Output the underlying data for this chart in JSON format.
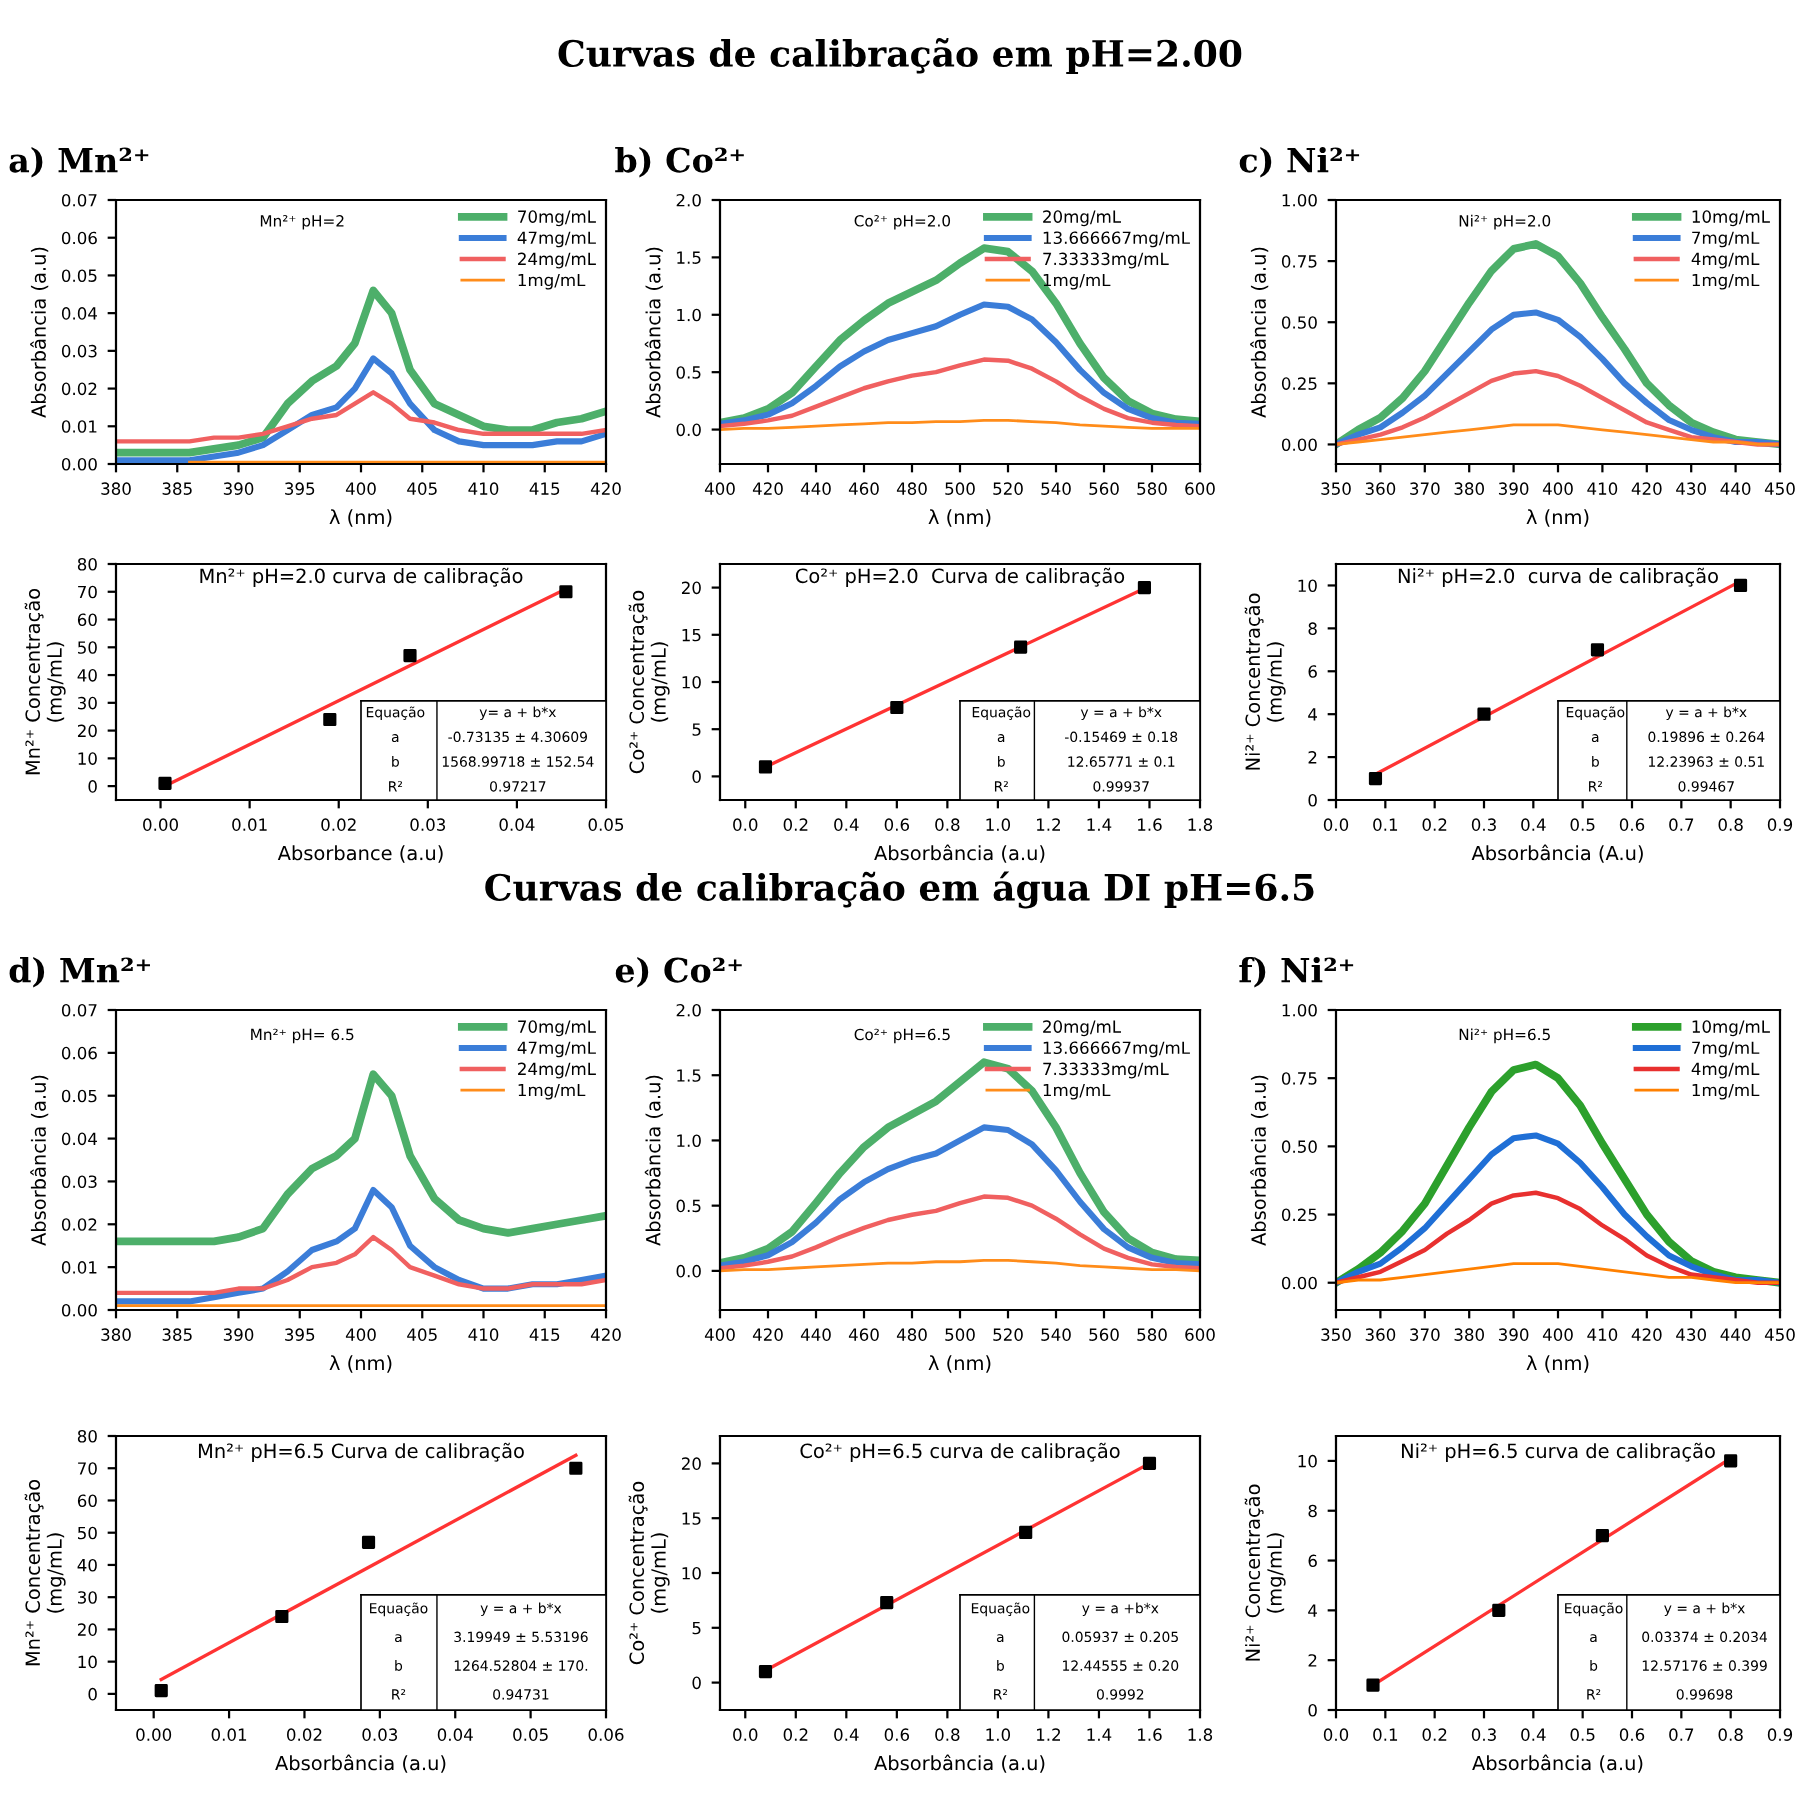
{
  "chart_data": [
    {
      "type": "other",
      "title": "Curvas de calibração em pH=2.00"
    },
    {
      "type": "line",
      "title": "a) Mn²⁺",
      "xlabel": "λ (nm)",
      "ylabel": "Absorbância (a.u)",
      "annotations": [
        "Mn²⁺ pH=2"
      ],
      "legend": "top right",
      "line_style": "solid",
      "marker": "none",
      "x": [
        380,
        383,
        386,
        388,
        390,
        392,
        394,
        396,
        398,
        399.5,
        401,
        402.5,
        404,
        406,
        408,
        410,
        412,
        414,
        416,
        418,
        420
      ],
      "xlim": [
        380,
        420
      ],
      "xticks": [
        380,
        385,
        390,
        395,
        400,
        405,
        410,
        415,
        420
      ],
      "ylim": [
        0,
        0.07
      ],
      "yticks": [
        {
          "value": 0,
          "label": "0.00"
        },
        {
          "value": 0.01,
          "label": "0.01"
        },
        {
          "value": 0.02,
          "label": "0.02"
        },
        {
          "value": 0.03,
          "label": "0.03"
        },
        {
          "value": 0.04,
          "label": "0.04"
        },
        {
          "value": 0.05,
          "label": "0.05"
        },
        {
          "value": 0.06,
          "label": "0.06"
        },
        {
          "value": 0.07,
          "label": "0.07"
        }
      ],
      "series": [
        {
          "name": "70mg/mL",
          "color": "#4daf6a",
          "values": [
            0.003,
            0.003,
            0.003,
            0.004,
            0.005,
            0.007,
            0.016,
            0.022,
            0.026,
            0.032,
            0.046,
            0.04,
            0.025,
            0.016,
            0.013,
            0.01,
            0.009,
            0.009,
            0.011,
            0.012,
            0.014
          ]
        },
        {
          "name": "47mg/mL",
          "color": "#3b7dd8",
          "values": [
            0.001,
            0.001,
            0.001,
            0.002,
            0.003,
            0.005,
            0.009,
            0.013,
            0.015,
            0.02,
            0.028,
            0.024,
            0.016,
            0.009,
            0.006,
            0.005,
            0.005,
            0.005,
            0.006,
            0.006,
            0.008
          ]
        },
        {
          "name": "24mg/mL",
          "color": "#f06060",
          "values": [
            0.006,
            0.006,
            0.006,
            0.007,
            0.007,
            0.008,
            0.01,
            0.012,
            0.013,
            0.016,
            0.019,
            0.016,
            0.012,
            0.011,
            0.009,
            0.008,
            0.008,
            0.008,
            0.008,
            0.008,
            0.009
          ]
        },
        {
          "name": "1mg/mL",
          "color": "#ff8c1a",
          "values": [
            null,
            null,
            0.0005,
            0.0005,
            0.0005,
            0.0005,
            0.0005,
            0.0005,
            0.0005,
            0.0005,
            0.0005,
            0.0005,
            0.0005,
            0.0005,
            0.0005,
            0.0005,
            0.0005,
            0.0005,
            0.0005,
            0.0005,
            0.0005
          ]
        }
      ]
    },
    {
      "type": "line",
      "title": "b) Co²⁺",
      "xlabel": "λ (nm)",
      "ylabel": "Absorbância (a.u)",
      "annotations": [
        "Co²⁺ pH=2.0"
      ],
      "legend": "top right",
      "line_style": "solid",
      "marker": "none",
      "x": [
        400,
        410,
        420,
        430,
        440,
        450,
        460,
        470,
        480,
        490,
        500,
        510,
        520,
        530,
        540,
        550,
        560,
        570,
        580,
        590,
        600
      ],
      "xlim": [
        400,
        600
      ],
      "xticks": [
        400,
        420,
        440,
        460,
        480,
        500,
        520,
        540,
        560,
        580,
        600
      ],
      "ylim": [
        -0.3,
        2.0
      ],
      "yticks": [
        {
          "value": 0,
          "label": "0.0"
        },
        0.5,
        {
          "value": 1,
          "label": "1.0"
        },
        1.5,
        {
          "value": 2,
          "label": "2.0"
        }
      ],
      "series": [
        {
          "name": "20mg/mL",
          "color": "#4daf6a",
          "values": [
            0.06,
            0.1,
            0.18,
            0.32,
            0.55,
            0.78,
            0.95,
            1.1,
            1.2,
            1.3,
            1.45,
            1.58,
            1.55,
            1.38,
            1.1,
            0.75,
            0.45,
            0.25,
            0.14,
            0.09,
            0.07
          ]
        },
        {
          "name": "13.666667mg/mL",
          "color": "#3b7dd8",
          "values": [
            0.05,
            0.08,
            0.13,
            0.23,
            0.38,
            0.55,
            0.68,
            0.78,
            0.84,
            0.9,
            1.0,
            1.09,
            1.07,
            0.96,
            0.76,
            0.52,
            0.32,
            0.18,
            0.1,
            0.06,
            0.05
          ]
        },
        {
          "name": "7.33333mg/mL",
          "color": "#f06060",
          "values": [
            0.03,
            0.05,
            0.08,
            0.12,
            0.2,
            0.28,
            0.36,
            0.42,
            0.47,
            0.5,
            0.56,
            0.61,
            0.6,
            0.53,
            0.42,
            0.29,
            0.18,
            0.1,
            0.06,
            0.04,
            0.03
          ]
        },
        {
          "name": "1mg/mL",
          "color": "#ff8c1a",
          "values": [
            0.0,
            0.01,
            0.01,
            0.02,
            0.03,
            0.04,
            0.05,
            0.06,
            0.06,
            0.07,
            0.07,
            0.08,
            0.08,
            0.07,
            0.06,
            0.04,
            0.03,
            0.02,
            0.01,
            0.01,
            0.01
          ]
        }
      ]
    },
    {
      "type": "line",
      "title": "c) Ni²⁺",
      "xlabel": "λ (nm)",
      "ylabel": "Absorbância (a.u)",
      "annotations": [
        "Ni²⁺ pH=2.0"
      ],
      "legend": "top right",
      "line_style": "solid",
      "marker": "none",
      "x": [
        350,
        355,
        360,
        365,
        370,
        375,
        380,
        385,
        390,
        395,
        400,
        405,
        410,
        415,
        420,
        425,
        430,
        435,
        440,
        445,
        450
      ],
      "xlim": [
        350,
        450
      ],
      "xticks": [
        350,
        360,
        370,
        380,
        390,
        400,
        410,
        420,
        430,
        440,
        450
      ],
      "ylim": [
        -0.08,
        1.0
      ],
      "yticks": [
        {
          "value": 0,
          "label": "0.00"
        },
        {
          "value": 0.25,
          "label": "0.25"
        },
        {
          "value": 0.5,
          "label": "0.50"
        },
        {
          "value": 0.75,
          "label": "0.75"
        },
        {
          "value": 1.0,
          "label": "1.00"
        }
      ],
      "series": [
        {
          "name": "10mg/mL",
          "color": "#4daf6a",
          "values": [
            0.0,
            0.06,
            0.11,
            0.19,
            0.3,
            0.44,
            0.58,
            0.71,
            0.8,
            0.82,
            0.77,
            0.66,
            0.52,
            0.39,
            0.25,
            0.16,
            0.09,
            0.05,
            0.02,
            0.01,
            0.0
          ]
        },
        {
          "name": "7mg/mL",
          "color": "#3b7dd8",
          "values": [
            0.0,
            0.04,
            0.07,
            0.13,
            0.2,
            0.29,
            0.38,
            0.47,
            0.53,
            0.54,
            0.51,
            0.44,
            0.35,
            0.25,
            0.17,
            0.1,
            0.06,
            0.03,
            0.01,
            0.01,
            0.0
          ]
        },
        {
          "name": "4mg/mL",
          "color": "#f06060",
          "values": [
            0.0,
            0.02,
            0.04,
            0.07,
            0.11,
            0.16,
            0.21,
            0.26,
            0.29,
            0.3,
            0.28,
            0.24,
            0.19,
            0.14,
            0.09,
            0.06,
            0.03,
            0.02,
            0.01,
            0.0,
            0.0
          ]
        },
        {
          "name": "1mg/mL",
          "color": "#ff8c1a",
          "values": [
            0.0,
            0.01,
            0.02,
            0.03,
            0.04,
            0.05,
            0.06,
            0.07,
            0.08,
            0.08,
            0.08,
            0.07,
            0.06,
            0.05,
            0.04,
            0.03,
            0.02,
            0.01,
            0.01,
            0.0,
            0.0
          ]
        }
      ]
    },
    {
      "type": "scatter",
      "title": "Mn²⁺ pH=2.0 curva de calibração",
      "xlabel": "Absorbance (a.u)",
      "ylabel": "Mn²⁺ Concentração\n(mg/mL)",
      "annotations": [
        "Equação",
        "y= a + b*x",
        "a",
        "-0.73135 ± 4.30609",
        "b",
        "1568.99718 ± 152.54",
        "R²",
        "0.97217"
      ],
      "xlim": [
        -0.005,
        0.05
      ],
      "xticks": [
        {
          "value": 0,
          "label": "0.00"
        },
        {
          "value": 0.01,
          "label": "0.01"
        },
        {
          "value": 0.02,
          "label": "0.02"
        },
        {
          "value": 0.03,
          "label": "0.03"
        },
        {
          "value": 0.04,
          "label": "0.04"
        },
        {
          "value": 0.05,
          "label": "0.05"
        }
      ],
      "ylim": [
        -5,
        80
      ],
      "yticks": [
        0,
        10,
        20,
        30,
        40,
        50,
        60,
        70,
        80
      ],
      "series": [
        {
          "type": "line",
          "color": "#ff3333",
          "marker": "none",
          "x": [
            0.0005,
            0.0455
          ],
          "values": [
            0,
            71
          ]
        },
        {
          "type": "scatter",
          "color": "#000000",
          "marker": "square",
          "x": [
            0.0005,
            0.019,
            0.028,
            0.0455
          ],
          "values": [
            1,
            24,
            47,
            70
          ]
        }
      ]
    },
    {
      "type": "scatter",
      "title": "Co²⁺ pH=2.0  Curva de calibração",
      "xlabel": "Absorbância (a.u)",
      "ylabel": "Co²⁺ Concentração\n(mg/mL)",
      "annotations": [
        "Equação",
        "y = a + b*x",
        "a",
        "-0.15469 ± 0.18",
        "b",
        "12.65771 ± 0.1",
        "R²",
        "0.99937"
      ],
      "xlim": [
        -0.1,
        1.8
      ],
      "xticks": [
        {
          "value": 0,
          "label": "0.0"
        },
        0.2,
        0.4,
        0.6,
        0.8,
        {
          "value": 1,
          "label": "1.0"
        },
        1.2,
        1.4,
        1.6,
        1.8
      ],
      "ylim": [
        -2.5,
        22.5
      ],
      "yticks": [
        0,
        5,
        10,
        15,
        20
      ],
      "series": [
        {
          "type": "line",
          "color": "#ff3333",
          "marker": "none",
          "x": [
            0.08,
            1.58
          ],
          "values": [
            1.0,
            19.9
          ]
        },
        {
          "type": "scatter",
          "color": "#000000",
          "marker": "square",
          "x": [
            0.08,
            0.6,
            1.09,
            1.58
          ],
          "values": [
            1,
            7.3,
            13.7,
            20
          ]
        }
      ]
    },
    {
      "type": "scatter",
      "title": "Ni²⁺ pH=2.0  curva de calibração",
      "xlabel": "Absorbância (A.u)",
      "ylabel": "Ni²⁺ Concentração\n(mg/mL)",
      "annotations": [
        "Equação",
        "y = a + b*x",
        "a",
        "0.19896 ± 0.264",
        "b",
        "12.23963 ± 0.51",
        "R²",
        "0.99467"
      ],
      "xlim": [
        0,
        0.9
      ],
      "xticks": [
        {
          "value": 0,
          "label": "0.0"
        },
        0.1,
        0.2,
        0.3,
        0.4,
        0.5,
        0.6,
        0.7,
        0.8,
        0.9
      ],
      "ylim": [
        0,
        11
      ],
      "yticks": [
        0,
        2,
        4,
        6,
        8,
        10
      ],
      "series": [
        {
          "type": "line",
          "color": "#ff3333",
          "marker": "none",
          "x": [
            0.08,
            0.82
          ],
          "values": [
            1.2,
            10.2
          ]
        },
        {
          "type": "scatter",
          "color": "#000000",
          "marker": "square",
          "x": [
            0.08,
            0.3,
            0.53,
            0.82
          ],
          "values": [
            1,
            4,
            7,
            10
          ]
        }
      ]
    },
    {
      "type": "other",
      "title": "Curvas de calibração em água DI pH=6.5"
    },
    {
      "type": "line",
      "title": "d) Mn²⁺",
      "xlabel": "λ (nm)",
      "ylabel": "Absorbância (a.u)",
      "annotations": [
        "Mn²⁺ pH= 6.5"
      ],
      "legend": "top right",
      "line_style": "solid",
      "marker": "none",
      "x": [
        380,
        383,
        386,
        388,
        390,
        392,
        394,
        396,
        398,
        399.5,
        401,
        402.5,
        404,
        406,
        408,
        410,
        412,
        414,
        416,
        418,
        420
      ],
      "xlim": [
        380,
        420
      ],
      "xticks": [
        380,
        385,
        390,
        395,
        400,
        405,
        410,
        415,
        420
      ],
      "ylim": [
        0,
        0.07
      ],
      "yticks": [
        {
          "value": 0,
          "label": "0.00"
        },
        {
          "value": 0.01,
          "label": "0.01"
        },
        {
          "value": 0.02,
          "label": "0.02"
        },
        {
          "value": 0.03,
          "label": "0.03"
        },
        {
          "value": 0.04,
          "label": "0.04"
        },
        {
          "value": 0.05,
          "label": "0.05"
        },
        {
          "value": 0.06,
          "label": "0.06"
        },
        {
          "value": 0.07,
          "label": "0.07"
        }
      ],
      "series": [
        {
          "name": "70mg/mL",
          "color": "#4daf6a",
          "values": [
            0.016,
            0.016,
            0.016,
            0.016,
            0.017,
            0.019,
            0.027,
            0.033,
            0.036,
            0.04,
            0.055,
            0.05,
            0.036,
            0.026,
            0.021,
            0.019,
            0.018,
            0.019,
            0.02,
            0.021,
            0.022
          ]
        },
        {
          "name": "47mg/mL",
          "color": "#3b7dd8",
          "values": [
            0.002,
            0.002,
            0.002,
            0.003,
            0.004,
            0.005,
            0.009,
            0.014,
            0.016,
            0.019,
            0.028,
            0.024,
            0.015,
            0.01,
            0.007,
            0.005,
            0.005,
            0.006,
            0.006,
            0.007,
            0.008
          ]
        },
        {
          "name": "24mg/mL",
          "color": "#f06060",
          "values": [
            0.004,
            0.004,
            0.004,
            0.004,
            0.005,
            0.005,
            0.007,
            0.01,
            0.011,
            0.013,
            0.017,
            0.014,
            0.01,
            0.008,
            0.006,
            0.005,
            0.005,
            0.006,
            0.006,
            0.006,
            0.007
          ]
        },
        {
          "name": "1mg/mL",
          "color": "#ff8c1a",
          "values": [
            0.001,
            0.001,
            0.001,
            0.001,
            0.001,
            0.001,
            0.001,
            0.001,
            0.001,
            0.001,
            0.001,
            0.001,
            0.001,
            0.001,
            0.001,
            0.001,
            0.001,
            0.001,
            0.001,
            0.001,
            0.001
          ]
        }
      ]
    },
    {
      "type": "line",
      "title": "e) Co²⁺",
      "xlabel": "λ (nm)",
      "ylabel": "Absorbância (a.u)",
      "annotations": [
        "Co²⁺ pH=6.5"
      ],
      "legend": "top right",
      "line_style": "solid",
      "marker": "none",
      "x": [
        400,
        410,
        420,
        430,
        440,
        450,
        460,
        470,
        480,
        490,
        500,
        510,
        520,
        530,
        540,
        550,
        560,
        570,
        580,
        590,
        600
      ],
      "xlim": [
        400,
        600
      ],
      "xticks": [
        400,
        420,
        440,
        460,
        480,
        500,
        520,
        540,
        560,
        580,
        600
      ],
      "ylim": [
        -0.3,
        2.0
      ],
      "yticks": [
        {
          "value": 0,
          "label": "0.0"
        },
        0.5,
        {
          "value": 1,
          "label": "1.0"
        },
        1.5,
        {
          "value": 2,
          "label": "2.0"
        }
      ],
      "series": [
        {
          "name": "20mg/mL",
          "color": "#4daf6a",
          "values": [
            0.06,
            0.1,
            0.17,
            0.3,
            0.52,
            0.75,
            0.95,
            1.1,
            1.2,
            1.3,
            1.45,
            1.6,
            1.55,
            1.38,
            1.1,
            0.75,
            0.45,
            0.25,
            0.14,
            0.09,
            0.08
          ]
        },
        {
          "name": "13.666667mg/mL",
          "color": "#3b7dd8",
          "values": [
            0.04,
            0.07,
            0.12,
            0.22,
            0.37,
            0.55,
            0.68,
            0.78,
            0.85,
            0.9,
            1.0,
            1.1,
            1.08,
            0.97,
            0.77,
            0.53,
            0.32,
            0.18,
            0.1,
            0.06,
            0.05
          ]
        },
        {
          "name": "7.33333mg/mL",
          "color": "#f06060",
          "values": [
            0.02,
            0.04,
            0.07,
            0.11,
            0.18,
            0.26,
            0.33,
            0.39,
            0.43,
            0.46,
            0.52,
            0.57,
            0.56,
            0.5,
            0.4,
            0.28,
            0.17,
            0.1,
            0.05,
            0.03,
            0.02
          ]
        },
        {
          "name": "1mg/mL",
          "color": "#ff8c1a",
          "values": [
            0.0,
            0.01,
            0.01,
            0.02,
            0.03,
            0.04,
            0.05,
            0.06,
            0.06,
            0.07,
            0.07,
            0.08,
            0.08,
            0.07,
            0.06,
            0.04,
            0.03,
            0.02,
            0.01,
            0.01,
            0.0
          ]
        }
      ]
    },
    {
      "type": "line",
      "title": "f) Ni²⁺",
      "xlabel": "λ (nm)",
      "ylabel": "Absorbância (a.u)",
      "annotations": [
        "Ni²⁺ pH=6.5"
      ],
      "legend": "top right",
      "line_style": "solid",
      "marker": "none",
      "x": [
        350,
        355,
        360,
        365,
        370,
        375,
        380,
        385,
        390,
        395,
        400,
        405,
        410,
        415,
        420,
        425,
        430,
        435,
        440,
        445,
        450
      ],
      "xlim": [
        350,
        450
      ],
      "xticks": [
        350,
        360,
        370,
        380,
        390,
        400,
        410,
        420,
        430,
        440,
        450
      ],
      "ylim": [
        -0.1,
        1.0
      ],
      "yticks": [
        {
          "value": 0,
          "label": "0.00"
        },
        {
          "value": 0.25,
          "label": "0.25"
        },
        {
          "value": 0.5,
          "label": "0.50"
        },
        {
          "value": 0.75,
          "label": "0.75"
        },
        {
          "value": 1.0,
          "label": "1.00"
        }
      ],
      "series": [
        {
          "name": "10mg/mL",
          "color": "#2ca02c",
          "values": [
            0.0,
            0.05,
            0.11,
            0.19,
            0.29,
            0.43,
            0.57,
            0.7,
            0.78,
            0.8,
            0.75,
            0.65,
            0.51,
            0.38,
            0.25,
            0.15,
            0.08,
            0.04,
            0.02,
            0.01,
            0.0
          ]
        },
        {
          "name": "7mg/mL",
          "color": "#1f6fd6",
          "values": [
            0.0,
            0.04,
            0.07,
            0.13,
            0.2,
            0.29,
            0.38,
            0.47,
            0.53,
            0.54,
            0.51,
            0.44,
            0.35,
            0.25,
            0.17,
            0.1,
            0.06,
            0.03,
            0.01,
            0.01,
            0.0
          ]
        },
        {
          "name": "4mg/mL",
          "color": "#e8302f",
          "values": [
            0.0,
            0.02,
            0.04,
            0.08,
            0.12,
            0.18,
            0.23,
            0.29,
            0.32,
            0.33,
            0.31,
            0.27,
            0.21,
            0.16,
            0.1,
            0.06,
            0.03,
            0.02,
            0.01,
            0.0,
            0.0
          ]
        },
        {
          "name": "1mg/mL",
          "color": "#ff8000",
          "values": [
            0.0,
            0.01,
            0.01,
            0.02,
            0.03,
            0.04,
            0.05,
            0.06,
            0.07,
            0.07,
            0.07,
            0.06,
            0.05,
            0.04,
            0.03,
            0.02,
            0.02,
            0.01,
            0.0,
            0.0,
            0.0
          ]
        }
      ]
    },
    {
      "type": "scatter",
      "title": "Mn²⁺ pH=6.5 Curva de calibração",
      "xlabel": "Absorbância (a.u)",
      "ylabel": "Mn²⁺ Concentração\n(mg/mL)",
      "annotations": [
        "Equação",
        "y = a + b*x",
        "a",
        "3.19949 ± 5.53196",
        "b",
        "1264.52804 ± 170.",
        "R²",
        "0.94731"
      ],
      "xlim": [
        -0.005,
        0.06
      ],
      "xticks": [
        {
          "value": 0,
          "label": "0.00"
        },
        {
          "value": 0.01,
          "label": "0.01"
        },
        {
          "value": 0.02,
          "label": "0.02"
        },
        {
          "value": 0.03,
          "label": "0.03"
        },
        {
          "value": 0.04,
          "label": "0.04"
        },
        {
          "value": 0.05,
          "label": "0.05"
        },
        {
          "value": 0.06,
          "label": "0.06"
        }
      ],
      "ylim": [
        -5,
        80
      ],
      "yticks": [
        0,
        10,
        20,
        30,
        40,
        50,
        60,
        70,
        80
      ],
      "series": [
        {
          "type": "line",
          "color": "#ff3333",
          "marker": "none",
          "x": [
            0.001,
            0.056
          ],
          "values": [
            4.5,
            74
          ]
        },
        {
          "type": "scatter",
          "color": "#000000",
          "marker": "square",
          "x": [
            0.001,
            0.017,
            0.0285,
            0.056
          ],
          "values": [
            1,
            24,
            47,
            70
          ]
        }
      ]
    },
    {
      "type": "scatter",
      "title": "Co²⁺ pH=6.5 curva de calibração",
      "xlabel": "Absorbância (a.u)",
      "ylabel": "Co²⁺ Concentração\n(mg/mL)",
      "annotations": [
        "Equação",
        "y = a +b*x",
        "a",
        "0.05937 ± 0.205",
        "b",
        "12.44555 ± 0.20",
        "R²",
        "0.9992"
      ],
      "xlim": [
        -0.1,
        1.8
      ],
      "xticks": [
        {
          "value": 0,
          "label": "0.0"
        },
        0.2,
        0.4,
        0.6,
        0.8,
        {
          "value": 1,
          "label": "1.0"
        },
        1.2,
        1.4,
        1.6,
        1.8
      ],
      "ylim": [
        -2.5,
        22.5
      ],
      "yticks": [
        0,
        5,
        10,
        15,
        20
      ],
      "series": [
        {
          "type": "line",
          "color": "#ff3333",
          "marker": "none",
          "x": [
            0.08,
            1.6
          ],
          "values": [
            1.1,
            20
          ]
        },
        {
          "type": "scatter",
          "color": "#000000",
          "marker": "square",
          "x": [
            0.08,
            0.56,
            1.11,
            1.6
          ],
          "values": [
            1,
            7.3,
            13.7,
            20
          ]
        }
      ]
    },
    {
      "type": "scatter",
      "title": "Ni²⁺ pH=6.5 curva de calibração",
      "xlabel": "Absorbância (a.u)",
      "ylabel": "Ni²⁺ Concentração\n(mg/mL)",
      "annotations": [
        "Equação",
        "y = a + b*x",
        "a",
        "0.03374 ± 0.2034",
        "b",
        "12.57176 ± 0.399",
        "R²",
        "0.99698"
      ],
      "xlim": [
        0,
        0.9
      ],
      "xticks": [
        {
          "value": 0,
          "label": "0.0"
        },
        0.1,
        0.2,
        0.3,
        0.4,
        0.5,
        0.6,
        0.7,
        0.8,
        0.9
      ],
      "ylim": [
        0,
        11
      ],
      "yticks": [
        0,
        2,
        4,
        6,
        8,
        10
      ],
      "series": [
        {
          "type": "line",
          "color": "#ff3333",
          "marker": "none",
          "x": [
            0.075,
            0.8
          ],
          "values": [
            1.0,
            10.1
          ]
        },
        {
          "type": "scatter",
          "color": "#000000",
          "marker": "square",
          "x": [
            0.075,
            0.33,
            0.54,
            0.8
          ],
          "values": [
            1,
            4,
            7,
            10
          ]
        }
      ]
    }
  ]
}
